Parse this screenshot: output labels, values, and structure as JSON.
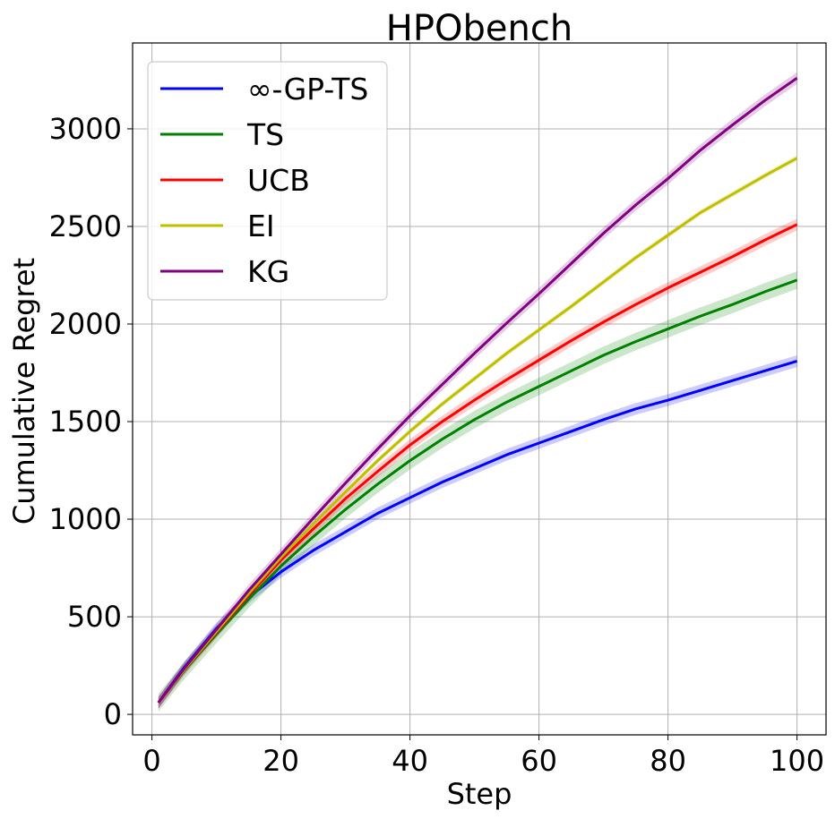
{
  "chart_data": {
    "type": "line",
    "title": "HPObench",
    "xlabel": "Step",
    "ylabel": "Cumulative Regret",
    "xlim": [
      -3,
      104.5
    ],
    "ylim": [
      -105,
      3440
    ],
    "xticks": [
      0,
      20,
      40,
      60,
      80,
      100
    ],
    "yticks": [
      0,
      500,
      1000,
      1500,
      2000,
      2500,
      3000
    ],
    "grid": true,
    "legend_position": "top-left",
    "x": [
      1,
      5,
      10,
      15,
      20,
      25,
      30,
      35,
      40,
      45,
      50,
      55,
      60,
      65,
      70,
      75,
      80,
      85,
      90,
      95,
      100
    ],
    "series": [
      {
        "name": "∞-GP-TS",
        "color": "#0000ff",
        "values": [
          60,
          240,
          440,
          600,
          730,
          840,
          935,
          1030,
          1110,
          1190,
          1260,
          1330,
          1390,
          1450,
          1510,
          1565,
          1610,
          1660,
          1710,
          1760,
          1810
        ],
        "band": 30
      },
      {
        "name": "TS",
        "color": "#008000",
        "values": [
          60,
          225,
          410,
          590,
          760,
          910,
          1050,
          1180,
          1300,
          1410,
          1510,
          1600,
          1680,
          1760,
          1840,
          1910,
          1975,
          2040,
          2100,
          2165,
          2225
        ],
        "band": 45
      },
      {
        "name": "UCB",
        "color": "#ff0000",
        "values": [
          60,
          230,
          420,
          610,
          790,
          950,
          1105,
          1245,
          1380,
          1500,
          1610,
          1715,
          1815,
          1915,
          2010,
          2100,
          2185,
          2265,
          2345,
          2430,
          2510
        ],
        "band": 30
      },
      {
        "name": "EI",
        "color": "#bfbf00",
        "values": [
          60,
          230,
          425,
          620,
          805,
          975,
          1140,
          1300,
          1450,
          1590,
          1720,
          1850,
          1970,
          2090,
          2215,
          2340,
          2455,
          2570,
          2665,
          2760,
          2850
        ],
        "band": 15
      },
      {
        "name": "KG",
        "color": "#800080",
        "values": [
          60,
          235,
          435,
          635,
          820,
          1005,
          1185,
          1360,
          1530,
          1690,
          1850,
          2005,
          2155,
          2310,
          2465,
          2610,
          2745,
          2890,
          3020,
          3145,
          3260
        ],
        "band": 30
      }
    ]
  }
}
